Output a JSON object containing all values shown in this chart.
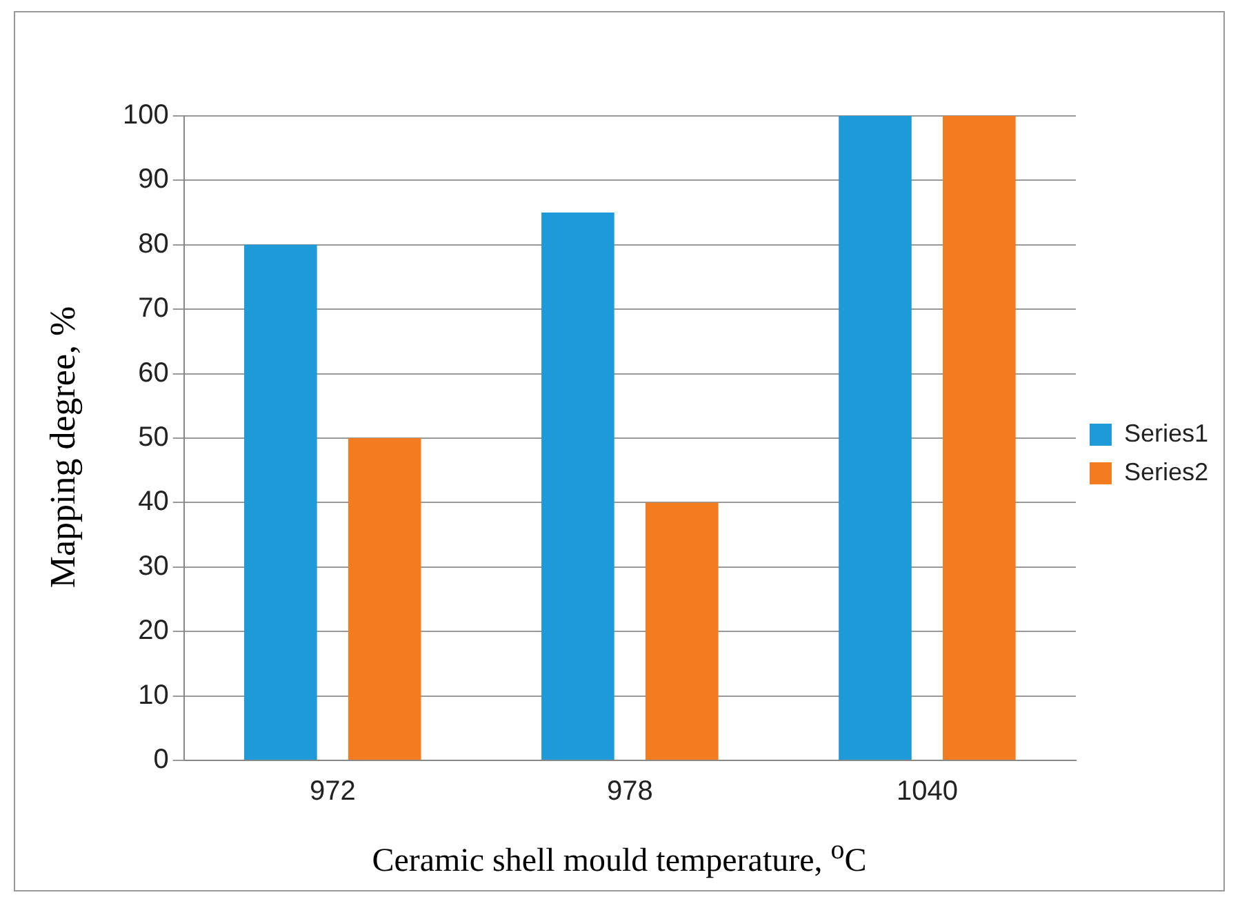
{
  "chart_data": {
    "type": "bar",
    "xlabel": "Ceramic shell mould temperature, $^{o}$C",
    "ylabel": "Mapping degree,  %",
    "categories": [
      "972",
      "978",
      "1040"
    ],
    "series": [
      {
        "name": "Series1",
        "color": "#1e9ad8",
        "values": [
          80,
          85,
          100
        ]
      },
      {
        "name": "Series2",
        "color": "#f37b20",
        "values": [
          50,
          40,
          100
        ]
      }
    ],
    "ylim": [
      0,
      100
    ],
    "yticks": [
      0,
      10,
      20,
      30,
      40,
      50,
      60,
      70,
      80,
      90,
      100
    ],
    "grid": "y",
    "legend": "right"
  }
}
